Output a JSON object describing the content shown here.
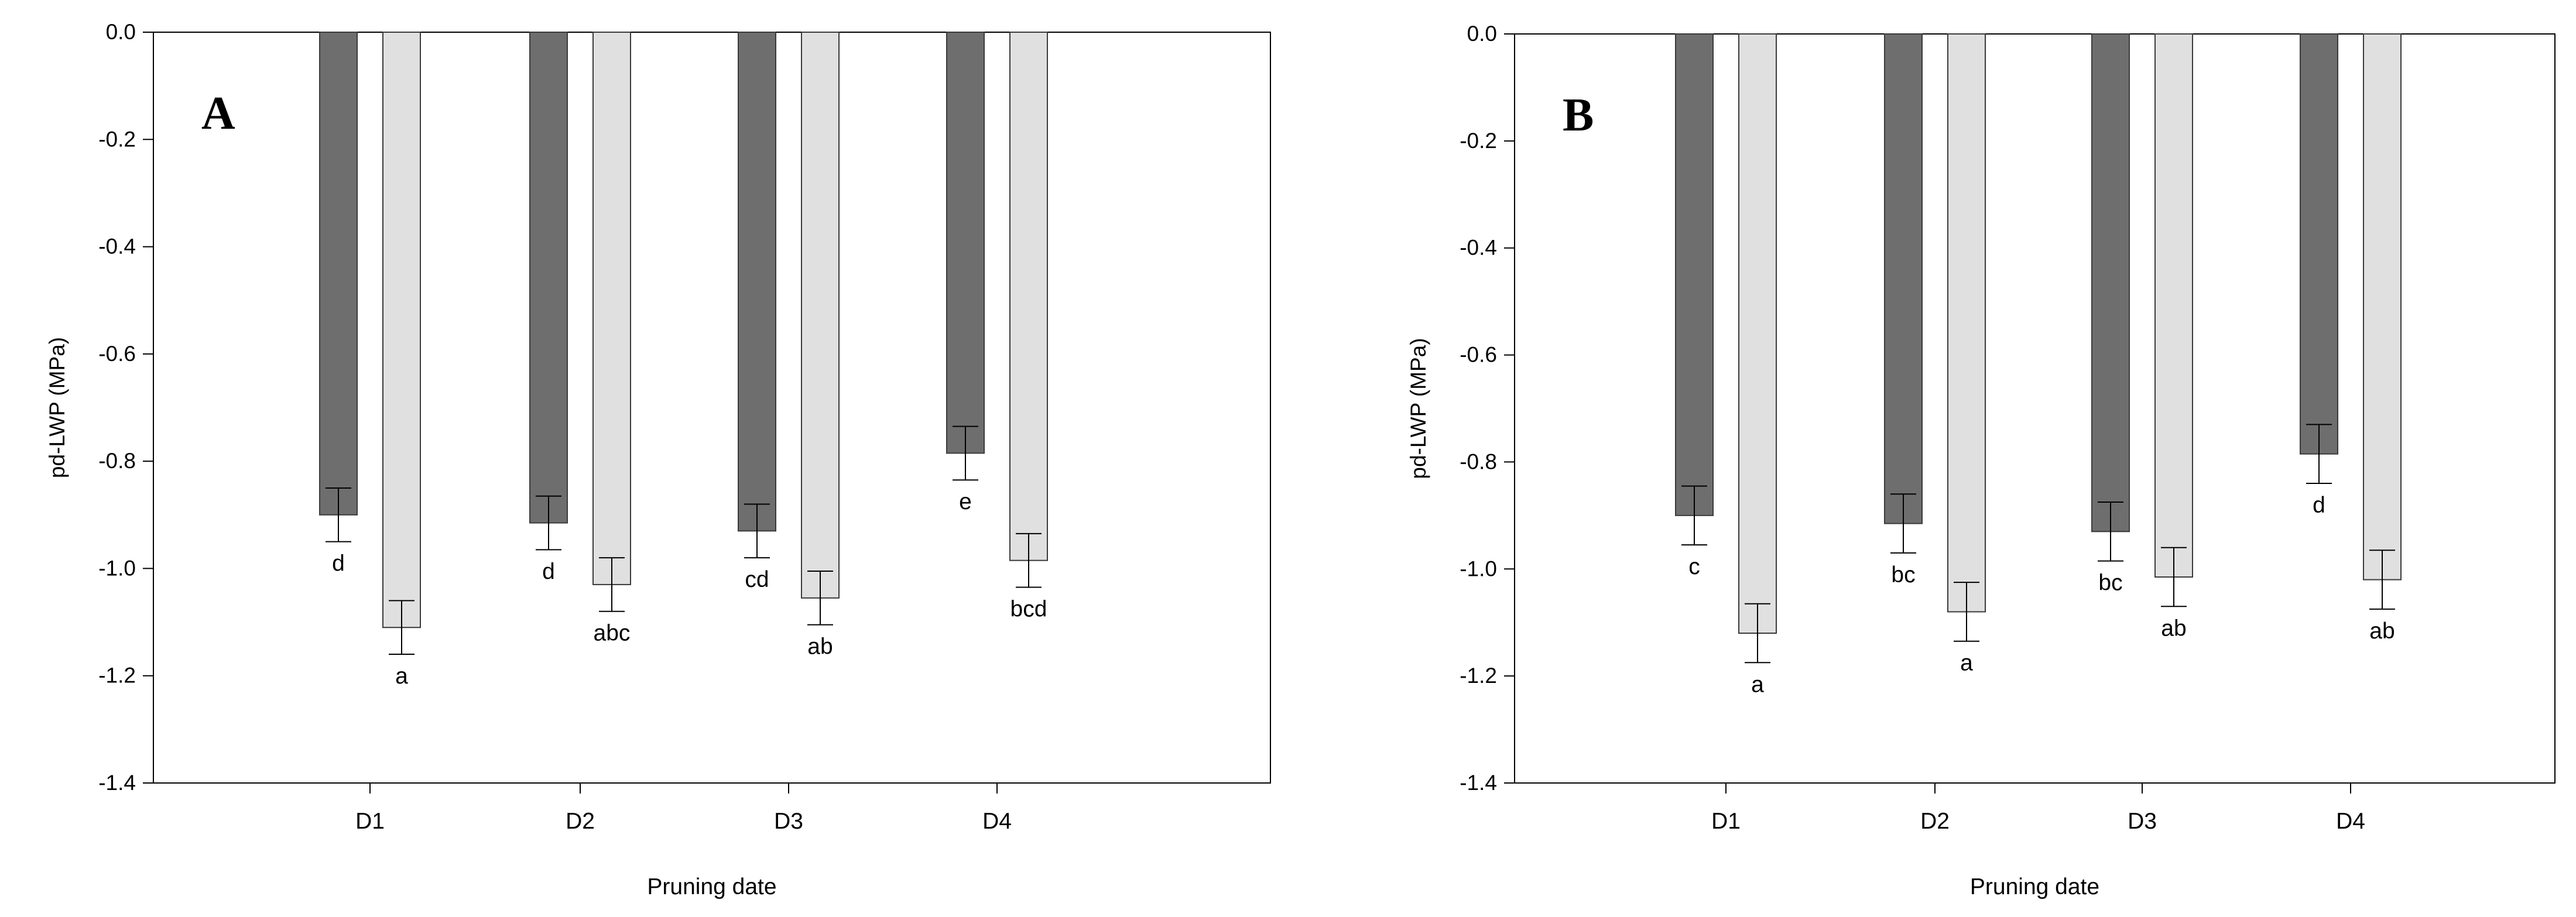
{
  "chart_data": [
    {
      "type": "bar",
      "panel": "A",
      "categories": [
        "D1",
        "D2",
        "D3",
        "D4"
      ],
      "series": [
        {
          "color": "#6e6e6e",
          "values": [
            -0.9,
            -0.915,
            -0.93,
            -0.785
          ],
          "errors": [
            0.05,
            0.05,
            0.05,
            0.05
          ],
          "letters": [
            "d",
            "d",
            "cd",
            "e"
          ]
        },
        {
          "color": "#e0e0e0",
          "values": [
            -1.11,
            -1.03,
            -1.055,
            -0.985
          ],
          "errors": [
            0.05,
            0.05,
            0.05,
            0.05
          ],
          "letters": [
            "a",
            "abc",
            "ab",
            "bcd"
          ]
        }
      ],
      "xlabel": "Pruning date",
      "ylabel": "pd-LWP (MPa)",
      "ylim": [
        -1.4,
        0.0
      ],
      "yticks": [
        "0.0",
        "-0.2",
        "-0.4",
        "-0.6",
        "-0.8",
        "-1.0",
        "-1.2",
        "-1.4"
      ],
      "grid": false,
      "legend": "none"
    },
    {
      "type": "bar",
      "panel": "B",
      "categories": [
        "D1",
        "D2",
        "D3",
        "D4"
      ],
      "series": [
        {
          "color": "#6e6e6e",
          "values": [
            -0.9,
            -0.915,
            -0.93,
            -0.785
          ],
          "errors": [
            0.055,
            0.055,
            0.055,
            0.055
          ],
          "letters": [
            "c",
            "bc",
            "bc",
            "d"
          ]
        },
        {
          "color": "#e0e0e0",
          "values": [
            -1.12,
            -1.08,
            -1.015,
            -1.02
          ],
          "errors": [
            0.055,
            0.055,
            0.055,
            0.055
          ],
          "letters": [
            "a",
            "a",
            "ab",
            "ab"
          ]
        }
      ],
      "xlabel": "Pruning date",
      "ylabel": "pd-LWP (MPa)",
      "ylim": [
        -1.4,
        0.0
      ],
      "yticks": [
        "0.0",
        "-0.2",
        "-0.4",
        "-0.6",
        "-0.8",
        "-1.0",
        "-1.2",
        "-1.4"
      ],
      "grid": false,
      "legend": "none"
    }
  ]
}
